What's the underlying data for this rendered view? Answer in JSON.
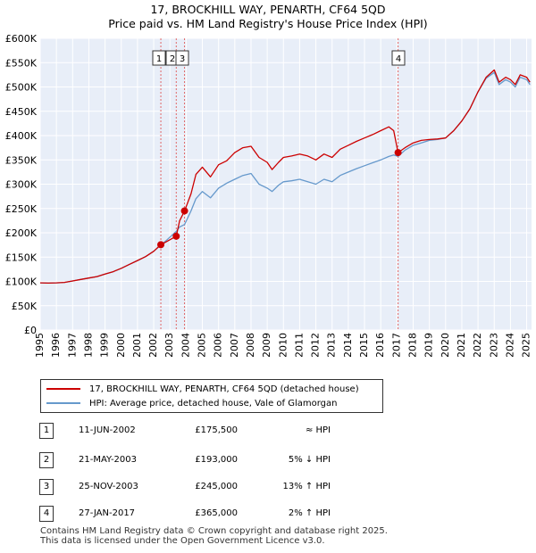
{
  "title": "17, BROCKHILL WAY, PENARTH, CF64 5QD",
  "subtitle": "Price paid vs. HM Land Registry's House Price Index (HPI)",
  "colors": {
    "property": "#cc0000",
    "hpi": "#6699cc",
    "plot_bg": "#e8eef8",
    "grid": "#ffffff"
  },
  "chart_data": {
    "type": "line",
    "x_range": [
      1995.0,
      2025.3
    ],
    "ylim": [
      0,
      600000
    ],
    "y_ticks": [
      0,
      50000,
      100000,
      150000,
      200000,
      250000,
      300000,
      350000,
      400000,
      450000,
      500000,
      550000,
      600000
    ],
    "y_tick_labels": [
      "£0",
      "£50K",
      "£100K",
      "£150K",
      "£200K",
      "£250K",
      "£300K",
      "£350K",
      "£400K",
      "£450K",
      "£500K",
      "£550K",
      "£600K"
    ],
    "x_ticks": [
      1995,
      1996,
      1997,
      1998,
      1999,
      2000,
      2001,
      2002,
      2003,
      2004,
      2005,
      2006,
      2007,
      2008,
      2009,
      2010,
      2011,
      2012,
      2013,
      2014,
      2015,
      2016,
      2017,
      2018,
      2019,
      2020,
      2021,
      2022,
      2023,
      2024,
      2025
    ],
    "series": [
      {
        "name": "17, BROCKHILL WAY, PENARTH, CF64 5QD (detached house)",
        "x": [
          1995.0,
          1995.5,
          1996.0,
          1996.5,
          1997.0,
          1997.5,
          1998.0,
          1998.5,
          1999.0,
          1999.5,
          2000.0,
          2000.5,
          2001.0,
          2001.5,
          2002.0,
          2002.44,
          2002.8,
          2003.39,
          2003.6,
          2003.9,
          2004.3,
          2004.6,
          2005.0,
          2005.5,
          2006.0,
          2006.5,
          2007.0,
          2007.5,
          2008.0,
          2008.5,
          2009.0,
          2009.3,
          2009.7,
          2010.0,
          2010.5,
          2011.0,
          2011.5,
          2012.0,
          2012.5,
          2013.0,
          2013.5,
          2014.0,
          2014.5,
          2015.0,
          2015.5,
          2016.0,
          2016.5,
          2016.8,
          2017.07,
          2017.5,
          2018.0,
          2018.5,
          2019.0,
          2019.5,
          2020.0,
          2020.5,
          2021.0,
          2021.5,
          2022.0,
          2022.5,
          2023.0,
          2023.3,
          2023.7,
          2024.0,
          2024.3,
          2024.6,
          2025.0,
          2025.2
        ],
        "values": [
          97000,
          96500,
          97000,
          98000,
          101000,
          104000,
          107000,
          110000,
          115000,
          120000,
          127000,
          135000,
          143000,
          151000,
          162000,
          175500,
          182000,
          193000,
          225000,
          245000,
          280000,
          320000,
          335000,
          315000,
          340000,
          348000,
          365000,
          375000,
          378000,
          355000,
          345000,
          330000,
          345000,
          355000,
          358000,
          362000,
          358000,
          350000,
          362000,
          355000,
          372000,
          380000,
          388000,
          395000,
          402000,
          410000,
          418000,
          410000,
          365000,
          375000,
          385000,
          390000,
          392000,
          393000,
          395000,
          410000,
          430000,
          455000,
          490000,
          520000,
          535000,
          510000,
          520000,
          515000,
          505000,
          525000,
          520000,
          510000
        ]
      },
      {
        "name": "HPI: Average price, detached house, Vale of Glamorgan",
        "x": [
          1995.0,
          1995.5,
          1996.0,
          1996.5,
          1997.0,
          1997.5,
          1998.0,
          1998.5,
          1999.0,
          1999.5,
          2000.0,
          2000.5,
          2001.0,
          2001.5,
          2002.0,
          2002.44,
          2002.8,
          2003.39,
          2003.6,
          2003.9,
          2004.3,
          2004.6,
          2005.0,
          2005.5,
          2006.0,
          2006.5,
          2007.0,
          2007.5,
          2008.0,
          2008.5,
          2009.0,
          2009.3,
          2009.7,
          2010.0,
          2010.5,
          2011.0,
          2011.5,
          2012.0,
          2012.5,
          2013.0,
          2013.5,
          2014.0,
          2014.5,
          2015.0,
          2015.5,
          2016.0,
          2016.5,
          2016.8,
          2017.07,
          2017.5,
          2018.0,
          2018.5,
          2019.0,
          2019.5,
          2020.0,
          2020.5,
          2021.0,
          2021.5,
          2022.0,
          2022.5,
          2023.0,
          2023.3,
          2023.7,
          2024.0,
          2024.3,
          2024.6,
          2025.0,
          2025.2
        ],
        "values": [
          97000,
          96500,
          97000,
          98000,
          101000,
          104000,
          107000,
          110000,
          115000,
          120000,
          127000,
          135000,
          143000,
          151000,
          162000,
          175000,
          185000,
          203000,
          212000,
          217000,
          245000,
          270000,
          285000,
          272000,
          292000,
          302000,
          310000,
          318000,
          322000,
          300000,
          292000,
          285000,
          298000,
          305000,
          307000,
          310000,
          305000,
          300000,
          310000,
          305000,
          318000,
          325000,
          332000,
          338000,
          344000,
          350000,
          357000,
          360000,
          357000,
          370000,
          380000,
          385000,
          390000,
          392000,
          395000,
          410000,
          430000,
          455000,
          490000,
          518000,
          530000,
          505000,
          515000,
          510000,
          500000,
          520000,
          515000,
          505000
        ]
      }
    ],
    "sales": [
      {
        "label": "1",
        "x": 2002.44,
        "y": 175500
      },
      {
        "label": "2",
        "x": 2003.39,
        "y": 193000
      },
      {
        "label": "3",
        "x": 2003.9,
        "y": 245000
      },
      {
        "label": "4",
        "x": 2017.07,
        "y": 365000
      }
    ]
  },
  "legend": {
    "property": "17, BROCKHILL WAY, PENARTH, CF64 5QD (detached house)",
    "hpi": "HPI: Average price, detached house, Vale of Glamorgan"
  },
  "transactions": [
    {
      "num": "1",
      "date": "11-JUN-2002",
      "price": "£175,500",
      "hpi": "≈ HPI"
    },
    {
      "num": "2",
      "date": "21-MAY-2003",
      "price": "£193,000",
      "hpi": "5% ↓ HPI"
    },
    {
      "num": "3",
      "date": "25-NOV-2003",
      "price": "£245,000",
      "hpi": "13% ↑ HPI"
    },
    {
      "num": "4",
      "date": "27-JAN-2017",
      "price": "£365,000",
      "hpi": "2% ↑ HPI"
    }
  ],
  "footer": {
    "line1": "Contains HM Land Registry data © Crown copyright and database right 2025.",
    "line2": "This data is licensed under the Open Government Licence v3.0."
  }
}
